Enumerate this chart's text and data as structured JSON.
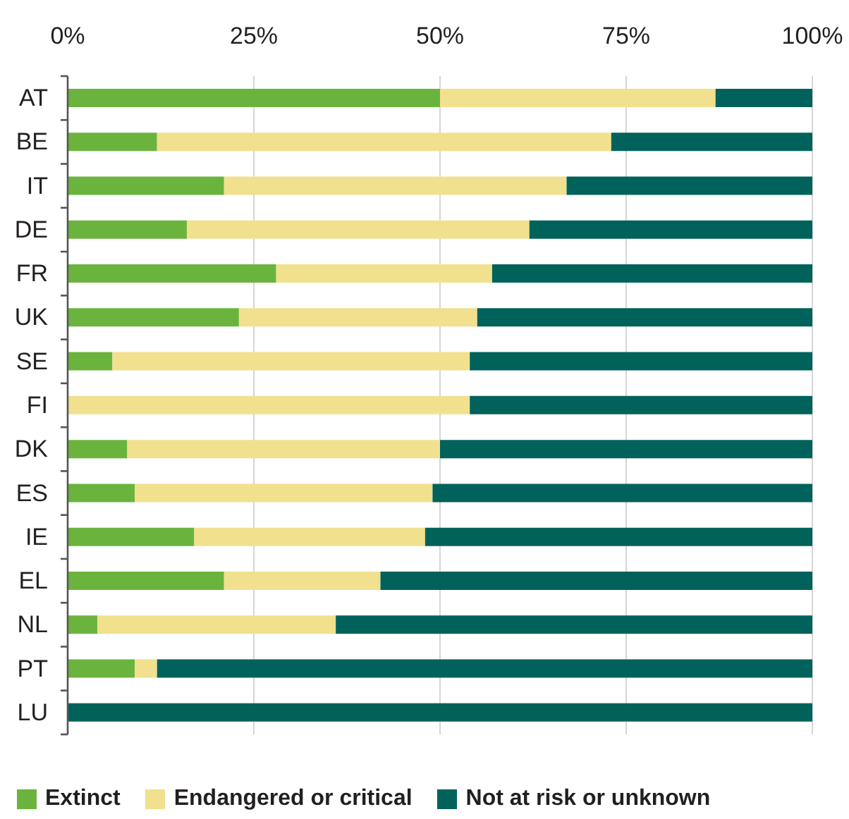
{
  "chart_data": {
    "type": "bar",
    "orientation": "horizontal",
    "stacked": true,
    "categories": [
      "AT",
      "BE",
      "IT",
      "DE",
      "FR",
      "UK",
      "SE",
      "FI",
      "DK",
      "ES",
      "IE",
      "EL",
      "NL",
      "PT",
      "LU"
    ],
    "series": [
      {
        "name": "Extinct",
        "color": "#6ab43e",
        "values": [
          50,
          12,
          21,
          16,
          28,
          23,
          6,
          0,
          8,
          9,
          17,
          21,
          4,
          9,
          0
        ]
      },
      {
        "name": "Endangered or critical",
        "color": "#f1e08e",
        "values": [
          37,
          61,
          46,
          46,
          29,
          32,
          48,
          54,
          42,
          40,
          31,
          21,
          32,
          3,
          0
        ]
      },
      {
        "name": "Not at risk or unknown",
        "color": "#00625a",
        "values": [
          13,
          27,
          33,
          38,
          43,
          45,
          46,
          46,
          50,
          51,
          52,
          58,
          64,
          88,
          100
        ]
      }
    ],
    "xlim": [
      0,
      100
    ],
    "xticks": [
      {
        "value": 0,
        "label": "0%"
      },
      {
        "value": 25,
        "label": "25%"
      },
      {
        "value": 50,
        "label": "50%"
      },
      {
        "value": 75,
        "label": "75%"
      },
      {
        "value": 100,
        "label": "100%"
      }
    ],
    "grid": "x",
    "legend": "bottom"
  }
}
